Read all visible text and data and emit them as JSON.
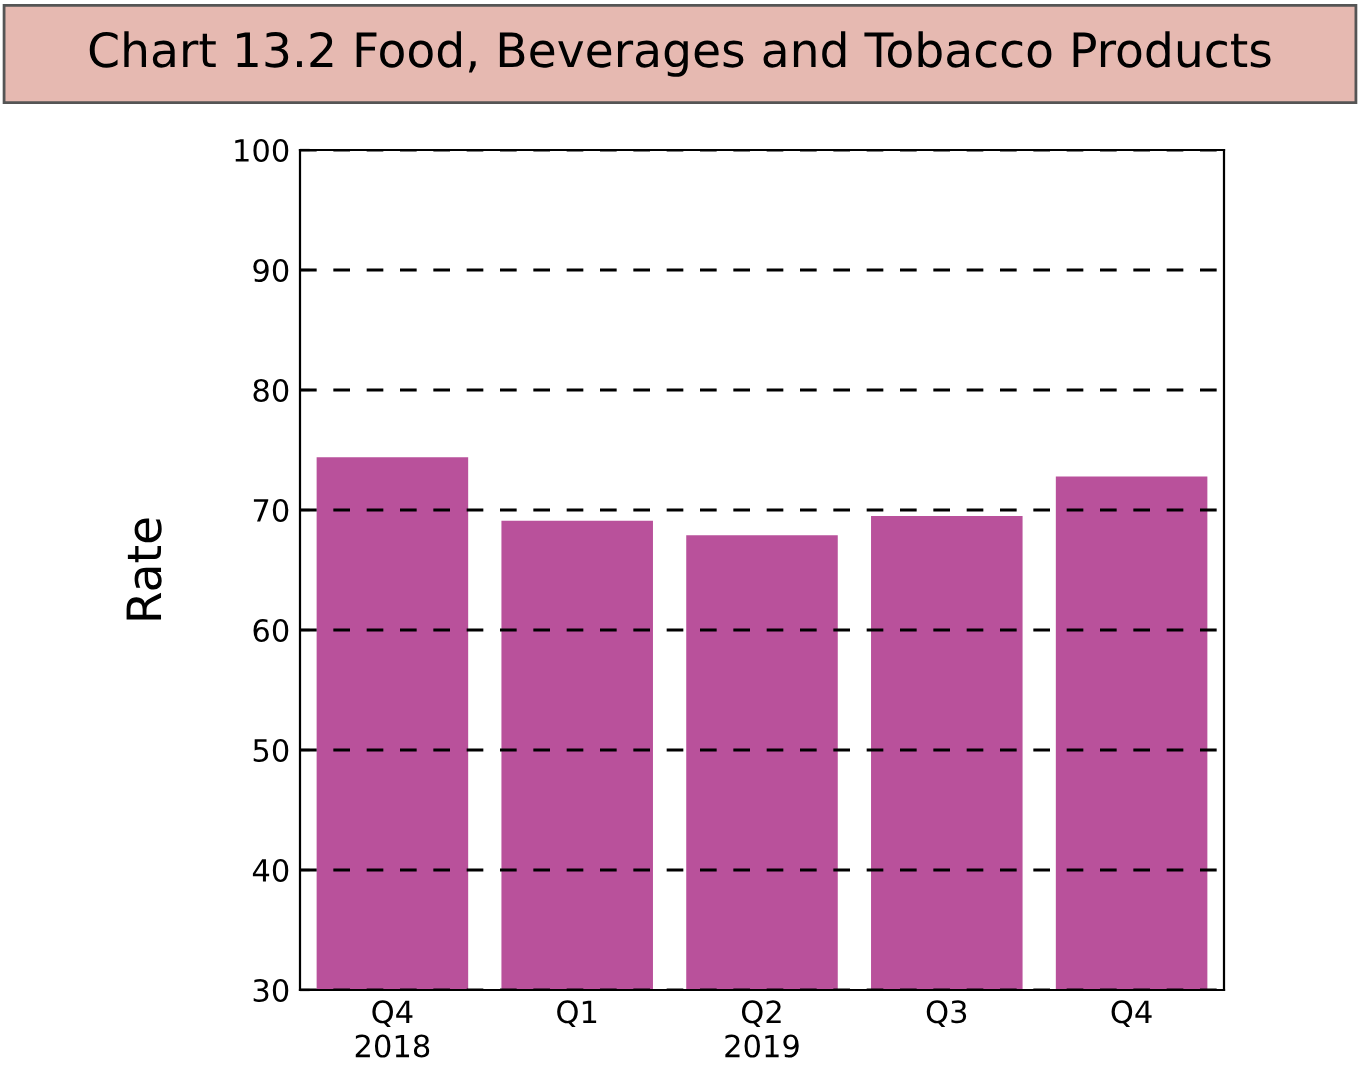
{
  "chart_data": {
    "type": "bar",
    "title": "Chart 13.2 Food, Beverages and Tobacco Products",
    "ylabel": "Rate",
    "categories": [
      "Q4\n2018",
      "Q1",
      "Q2\n2019",
      "Q3",
      "Q4"
    ],
    "values": [
      74.4,
      69.1,
      67.9,
      69.5,
      72.8
    ],
    "color": "#b9519b",
    "ylim": [
      30,
      100
    ],
    "yticks": [
      30,
      40,
      50,
      60,
      70,
      80,
      90,
      100
    ],
    "grid": "y",
    "line_style": "dashed"
  }
}
